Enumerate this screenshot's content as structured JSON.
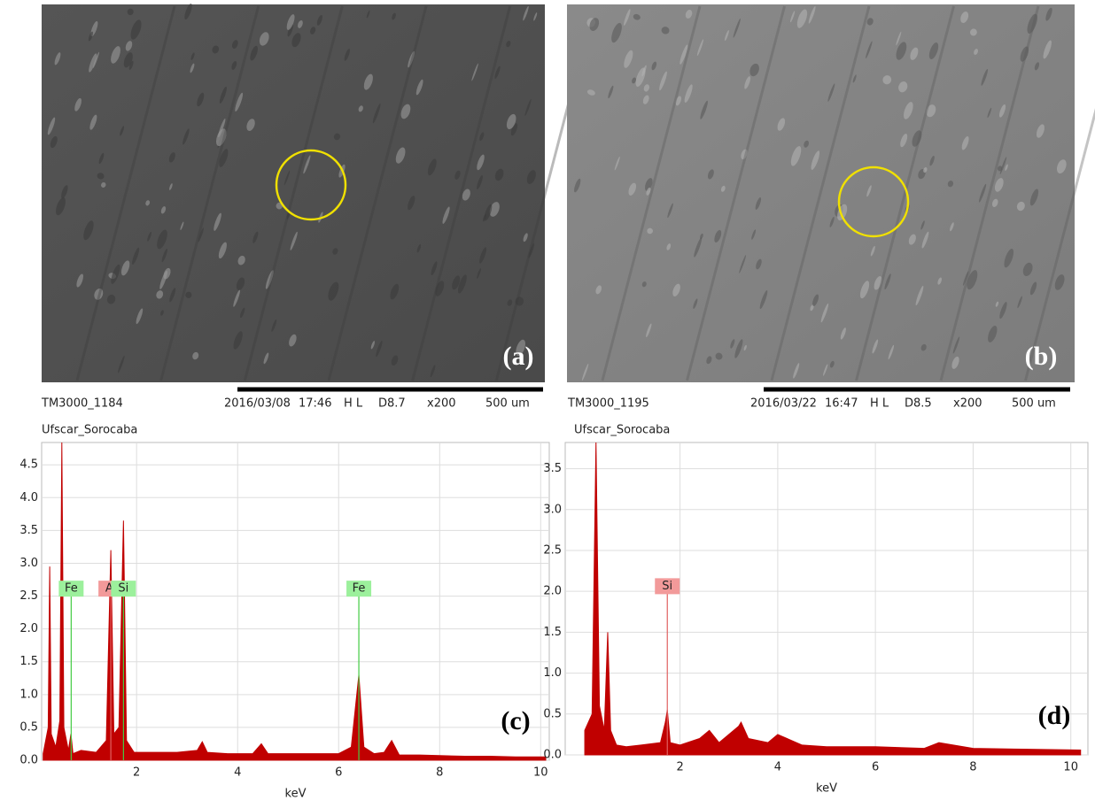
{
  "images": [
    {
      "label": "(a)",
      "info_left": "TM3000_1184",
      "info": [
        "2016/03/08",
        "17:46",
        "H L",
        "D8.7",
        "x200",
        "500 um"
      ]
    },
    {
      "label": "(b)",
      "info_left": "TM3000_1195",
      "info": [
        "2016/03/22",
        "16:47",
        "H L",
        "D8.5",
        "x200",
        "500 um"
      ]
    }
  ],
  "chart_data": [
    {
      "type": "area",
      "title": "Ufscar_Sorocaba",
      "xlabel": "keV",
      "panel_label": "(c)",
      "color": "#c00000",
      "grid": true,
      "x": [
        0.15,
        0.25,
        0.28,
        0.31,
        0.4,
        0.48,
        0.52,
        0.56,
        0.65,
        0.7,
        0.74,
        0.9,
        1.2,
        1.4,
        1.49,
        1.55,
        1.65,
        1.74,
        1.8,
        1.95,
        2.3,
        2.8,
        3.2,
        3.3,
        3.4,
        3.8,
        4.3,
        4.47,
        4.6,
        5.0,
        5.5,
        6.0,
        6.25,
        6.4,
        6.5,
        6.7,
        6.9,
        7.05,
        7.2,
        7.6,
        8.0,
        8.5,
        9.0,
        9.5,
        10.1
      ],
      "values": [
        0.1,
        0.5,
        2.95,
        0.4,
        0.2,
        0.6,
        4.84,
        0.5,
        0.15,
        0.4,
        0.1,
        0.15,
        0.12,
        0.3,
        3.2,
        0.4,
        0.5,
        3.65,
        0.3,
        0.12,
        0.12,
        0.12,
        0.15,
        0.28,
        0.12,
        0.1,
        0.1,
        0.25,
        0.1,
        0.1,
        0.1,
        0.1,
        0.2,
        1.3,
        0.2,
        0.1,
        0.12,
        0.3,
        0.08,
        0.08,
        0.07,
        0.06,
        0.06,
        0.05,
        0.05
      ],
      "xlim": [
        0.12,
        10.17
      ],
      "ylim": [
        0,
        4.84
      ],
      "xticks": [
        2,
        4,
        6,
        8,
        10
      ],
      "yticks": [
        {
          "value": 0,
          "label": "0.0"
        },
        0.5,
        {
          "value": 1,
          "label": "1.0"
        },
        1.5,
        {
          "value": 2,
          "label": "2.0"
        },
        2.5,
        {
          "value": 3,
          "label": "3.0"
        },
        3.5,
        {
          "value": 4,
          "label": "4.0"
        },
        4.5
      ],
      "markers": [
        {
          "label": "Fe",
          "x": 0.705,
          "color": "#44cc44"
        },
        {
          "label": "Al",
          "x": 1.49,
          "color": "#e06060"
        },
        {
          "label": "Si",
          "x": 1.74,
          "color": "#44cc44"
        },
        {
          "label": "Fe",
          "x": 6.4,
          "color": "#44cc44"
        }
      ]
    },
    {
      "type": "area",
      "title": "Ufscar_Sorocaba",
      "xlabel": "keV",
      "panel_label": "(d)",
      "color": "#c00000",
      "grid": true,
      "x": [
        0.05,
        0.2,
        0.28,
        0.35,
        0.45,
        0.52,
        0.58,
        0.7,
        0.9,
        1.2,
        1.6,
        1.7,
        1.74,
        1.8,
        2.0,
        2.4,
        2.6,
        2.8,
        3.2,
        3.25,
        3.4,
        3.8,
        4.0,
        4.5,
        5.0,
        6.0,
        7.0,
        7.3,
        8.0,
        9.0,
        10.2
      ],
      "values": [
        0.3,
        0.5,
        3.82,
        0.6,
        0.3,
        1.5,
        0.3,
        0.12,
        0.1,
        0.12,
        0.15,
        0.4,
        0.55,
        0.15,
        0.12,
        0.2,
        0.3,
        0.15,
        0.35,
        0.4,
        0.2,
        0.15,
        0.25,
        0.12,
        0.1,
        0.1,
        0.08,
        0.15,
        0.08,
        0.07,
        0.06
      ],
      "xlim": [
        -0.35,
        10.35
      ],
      "ylim": [
        0,
        3.82
      ],
      "xticks": [
        2,
        4,
        6,
        8,
        10
      ],
      "yticks": [
        {
          "value": 0,
          "label": "0.0"
        },
        0.5,
        {
          "value": 1,
          "label": "1.0"
        },
        1.5,
        {
          "value": 2,
          "label": "2.0"
        },
        2.5,
        {
          "value": 3,
          "label": "3.0"
        },
        3.5
      ],
      "markers": [
        {
          "label": "Si",
          "x": 1.74,
          "color": "#e06060"
        }
      ]
    }
  ]
}
